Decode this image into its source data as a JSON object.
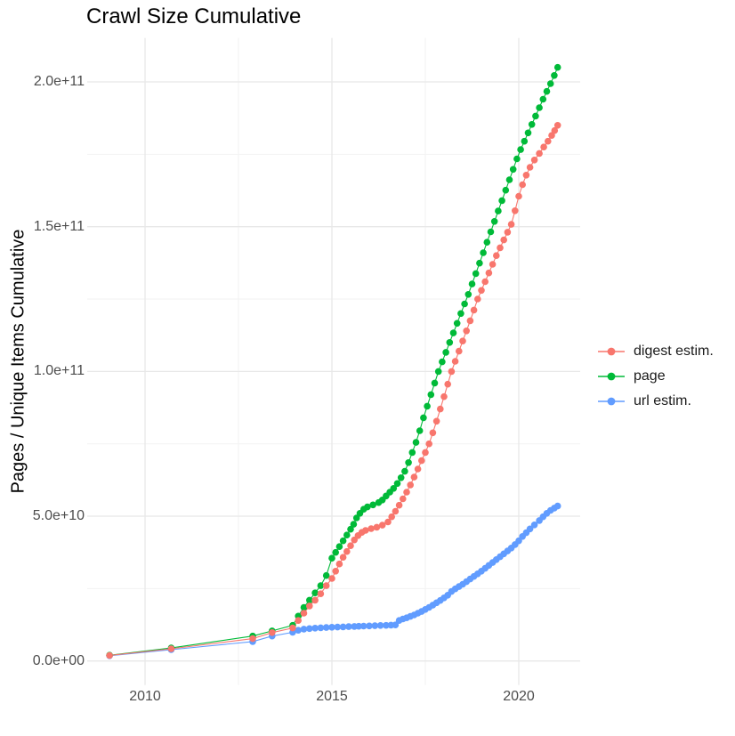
{
  "title": "Crawl Size Cumulative",
  "chart_data": {
    "type": "line",
    "title": "Crawl Size Cumulative",
    "xlabel": "",
    "ylabel": "Pages / Unique Items Cumulative",
    "value_unit_note": "series point values stored in billions (1e9) of pages/items",
    "x_ticks": [
      {
        "value": 2010,
        "label": "2010"
      },
      {
        "value": 2015,
        "label": "2015"
      },
      {
        "value": 2020,
        "label": "2020"
      }
    ],
    "x_minor": [
      2012.5,
      2017.5
    ],
    "y_ticks": [
      {
        "value": 0,
        "label": "0.0e+00"
      },
      {
        "value": 50,
        "label": "5.0e+10"
      },
      {
        "value": 100,
        "label": "1.0e+11"
      },
      {
        "value": 150,
        "label": "1.5e+11"
      },
      {
        "value": 200,
        "label": "2.0e+11"
      }
    ],
    "y_minor": [
      25,
      75,
      125,
      175
    ],
    "xlim": [
      2008.45,
      2021.7
    ],
    "ylim_billions": [
      -8.3,
      215.2
    ],
    "grid": true,
    "legend_position": "right",
    "colors": {
      "grid_major": "#e8e8e8",
      "grid_minor": "#f2f2f2",
      "axis_text": "#4d4d4d",
      "text": "#000000",
      "digest": "#F8766D",
      "page": "#00BA38",
      "url": "#619CFF"
    },
    "series": [
      {
        "name": "digest estim.",
        "color": "#F8766D",
        "points": [
          [
            2009.05,
            1.9
          ],
          [
            2010.7,
            4.2
          ],
          [
            2012.88,
            7.7
          ],
          [
            2013.4,
            9.8
          ],
          [
            2013.95,
            11.4
          ],
          [
            2014.1,
            14
          ],
          [
            2014.25,
            16.5
          ],
          [
            2014.4,
            19
          ],
          [
            2014.55,
            21
          ],
          [
            2014.7,
            23.2
          ],
          [
            2014.85,
            26
          ],
          [
            2015,
            28.5
          ],
          [
            2015.1,
            31
          ],
          [
            2015.2,
            33.5
          ],
          [
            2015.3,
            35.8
          ],
          [
            2015.4,
            37.8
          ],
          [
            2015.5,
            39.8
          ],
          [
            2015.6,
            41.8
          ],
          [
            2015.7,
            43.3
          ],
          [
            2015.8,
            44.4
          ],
          [
            2015.9,
            45.1
          ],
          [
            2016.05,
            45.7
          ],
          [
            2016.2,
            46.2
          ],
          [
            2016.35,
            46.9
          ],
          [
            2016.5,
            48
          ],
          [
            2016.6,
            49.8
          ],
          [
            2016.7,
            51.7
          ],
          [
            2016.8,
            53.8
          ],
          [
            2016.9,
            56
          ],
          [
            2017,
            58.3
          ],
          [
            2017.1,
            60.8
          ],
          [
            2017.2,
            63.5
          ],
          [
            2017.3,
            66.3
          ],
          [
            2017.4,
            69.2
          ],
          [
            2017.5,
            72
          ],
          [
            2017.6,
            75
          ],
          [
            2017.7,
            78.8
          ],
          [
            2017.8,
            82.8
          ],
          [
            2017.9,
            87
          ],
          [
            2018,
            91.3
          ],
          [
            2018.1,
            95.6
          ],
          [
            2018.2,
            100
          ],
          [
            2018.3,
            103.5
          ],
          [
            2018.4,
            107
          ],
          [
            2018.5,
            110.5
          ],
          [
            2018.6,
            114
          ],
          [
            2018.7,
            117.5
          ],
          [
            2018.8,
            121.2
          ],
          [
            2018.9,
            125
          ],
          [
            2019,
            128
          ],
          [
            2019.1,
            131
          ],
          [
            2019.2,
            134
          ],
          [
            2019.3,
            137
          ],
          [
            2019.4,
            140
          ],
          [
            2019.5,
            142.7
          ],
          [
            2019.6,
            145.4
          ],
          [
            2019.7,
            148.1
          ],
          [
            2019.8,
            150.8
          ],
          [
            2019.9,
            155.5
          ],
          [
            2020,
            160.5
          ],
          [
            2020.1,
            164.5
          ],
          [
            2020.2,
            167.8
          ],
          [
            2020.3,
            170.5
          ],
          [
            2020.42,
            173
          ],
          [
            2020.55,
            175.3
          ],
          [
            2020.67,
            177.5
          ],
          [
            2020.78,
            179.5
          ],
          [
            2020.88,
            181.5
          ],
          [
            2020.96,
            183.2
          ],
          [
            2021.04,
            185
          ]
        ]
      },
      {
        "name": "page",
        "color": "#00BA38",
        "points": [
          [
            2009.05,
            2
          ],
          [
            2010.7,
            4.5
          ],
          [
            2012.88,
            8.6
          ],
          [
            2013.4,
            10.4
          ],
          [
            2013.95,
            12.3
          ],
          [
            2014.1,
            15.5
          ],
          [
            2014.25,
            18.5
          ],
          [
            2014.4,
            21
          ],
          [
            2014.55,
            23.5
          ],
          [
            2014.7,
            26
          ],
          [
            2014.85,
            29.5
          ],
          [
            2015,
            35.5
          ],
          [
            2015.1,
            37.5
          ],
          [
            2015.2,
            39.5
          ],
          [
            2015.3,
            41.5
          ],
          [
            2015.4,
            43.5
          ],
          [
            2015.5,
            45.5
          ],
          [
            2015.58,
            47.2
          ],
          [
            2015.66,
            49.4
          ],
          [
            2015.75,
            51
          ],
          [
            2015.85,
            52.4
          ],
          [
            2015.95,
            53.2
          ],
          [
            2016.1,
            53.9
          ],
          [
            2016.25,
            54.7
          ],
          [
            2016.35,
            55.6
          ],
          [
            2016.45,
            57
          ],
          [
            2016.55,
            58.3
          ],
          [
            2016.65,
            59.6
          ],
          [
            2016.75,
            61.3
          ],
          [
            2016.85,
            63.3
          ],
          [
            2016.95,
            65.5
          ],
          [
            2017.05,
            68.5
          ],
          [
            2017.15,
            72
          ],
          [
            2017.25,
            75.5
          ],
          [
            2017.35,
            79.5
          ],
          [
            2017.45,
            84
          ],
          [
            2017.55,
            88
          ],
          [
            2017.65,
            92
          ],
          [
            2017.75,
            96
          ],
          [
            2017.85,
            100
          ],
          [
            2017.95,
            103.3
          ],
          [
            2018.05,
            106.6
          ],
          [
            2018.15,
            110
          ],
          [
            2018.25,
            113.3
          ],
          [
            2018.35,
            116.6
          ],
          [
            2018.45,
            120
          ],
          [
            2018.55,
            123.3
          ],
          [
            2018.65,
            126.6
          ],
          [
            2018.75,
            130.2
          ],
          [
            2018.85,
            133.8
          ],
          [
            2018.95,
            137.4
          ],
          [
            2019.05,
            141
          ],
          [
            2019.15,
            144.6
          ],
          [
            2019.25,
            148.2
          ],
          [
            2019.35,
            151.8
          ],
          [
            2019.45,
            155.4
          ],
          [
            2019.55,
            159
          ],
          [
            2019.65,
            162.6
          ],
          [
            2019.75,
            166.2
          ],
          [
            2019.85,
            169.8
          ],
          [
            2019.95,
            173.4
          ],
          [
            2020.05,
            176.6
          ],
          [
            2020.15,
            179.5
          ],
          [
            2020.25,
            182.4
          ],
          [
            2020.35,
            185.3
          ],
          [
            2020.45,
            188.2
          ],
          [
            2020.55,
            191.1
          ],
          [
            2020.65,
            194
          ],
          [
            2020.75,
            196.7
          ],
          [
            2020.85,
            199.4
          ],
          [
            2020.95,
            202.2
          ],
          [
            2021.04,
            205
          ]
        ]
      },
      {
        "name": "url estim.",
        "color": "#619CFF",
        "points": [
          [
            2009.05,
            1.8
          ],
          [
            2010.7,
            3.9
          ],
          [
            2012.88,
            6.7
          ],
          [
            2013.4,
            8.6
          ],
          [
            2013.95,
            9.9
          ],
          [
            2014.1,
            10.6
          ],
          [
            2014.25,
            11
          ],
          [
            2014.4,
            11.2
          ],
          [
            2014.55,
            11.35
          ],
          [
            2014.7,
            11.45
          ],
          [
            2014.85,
            11.55
          ],
          [
            2015,
            11.65
          ],
          [
            2015.15,
            11.7
          ],
          [
            2015.3,
            11.78
          ],
          [
            2015.45,
            11.85
          ],
          [
            2015.6,
            11.92
          ],
          [
            2015.72,
            12
          ],
          [
            2015.85,
            12.05
          ],
          [
            2016,
            12.1
          ],
          [
            2016.15,
            12.18
          ],
          [
            2016.3,
            12.25
          ],
          [
            2016.45,
            12.3
          ],
          [
            2016.58,
            12.38
          ],
          [
            2016.7,
            12.45
          ],
          [
            2016.8,
            14
          ],
          [
            2016.9,
            14.5
          ],
          [
            2017,
            14.9
          ],
          [
            2017.1,
            15.4
          ],
          [
            2017.2,
            15.9
          ],
          [
            2017.3,
            16.5
          ],
          [
            2017.4,
            17.1
          ],
          [
            2017.5,
            17.8
          ],
          [
            2017.6,
            18.5
          ],
          [
            2017.7,
            19.3
          ],
          [
            2017.8,
            20.1
          ],
          [
            2017.9,
            20.9
          ],
          [
            2018,
            21.8
          ],
          [
            2018.1,
            22.7
          ],
          [
            2018.2,
            24
          ],
          [
            2018.3,
            24.9
          ],
          [
            2018.4,
            25.7
          ],
          [
            2018.5,
            26.5
          ],
          [
            2018.6,
            27.4
          ],
          [
            2018.7,
            28.3
          ],
          [
            2018.8,
            29.2
          ],
          [
            2018.9,
            30.1
          ],
          [
            2019,
            31
          ],
          [
            2019.1,
            32
          ],
          [
            2019.2,
            33
          ],
          [
            2019.3,
            34
          ],
          [
            2019.4,
            35
          ],
          [
            2019.5,
            36
          ],
          [
            2019.6,
            37
          ],
          [
            2019.7,
            38
          ],
          [
            2019.8,
            39
          ],
          [
            2019.9,
            40.2
          ],
          [
            2020,
            41.5
          ],
          [
            2020.1,
            43
          ],
          [
            2020.2,
            44.3
          ],
          [
            2020.3,
            45.6
          ],
          [
            2020.42,
            47
          ],
          [
            2020.55,
            48.5
          ],
          [
            2020.65,
            49.8
          ],
          [
            2020.75,
            51
          ],
          [
            2020.85,
            52
          ],
          [
            2020.95,
            52.8
          ],
          [
            2021.04,
            53.5
          ]
        ]
      }
    ]
  }
}
